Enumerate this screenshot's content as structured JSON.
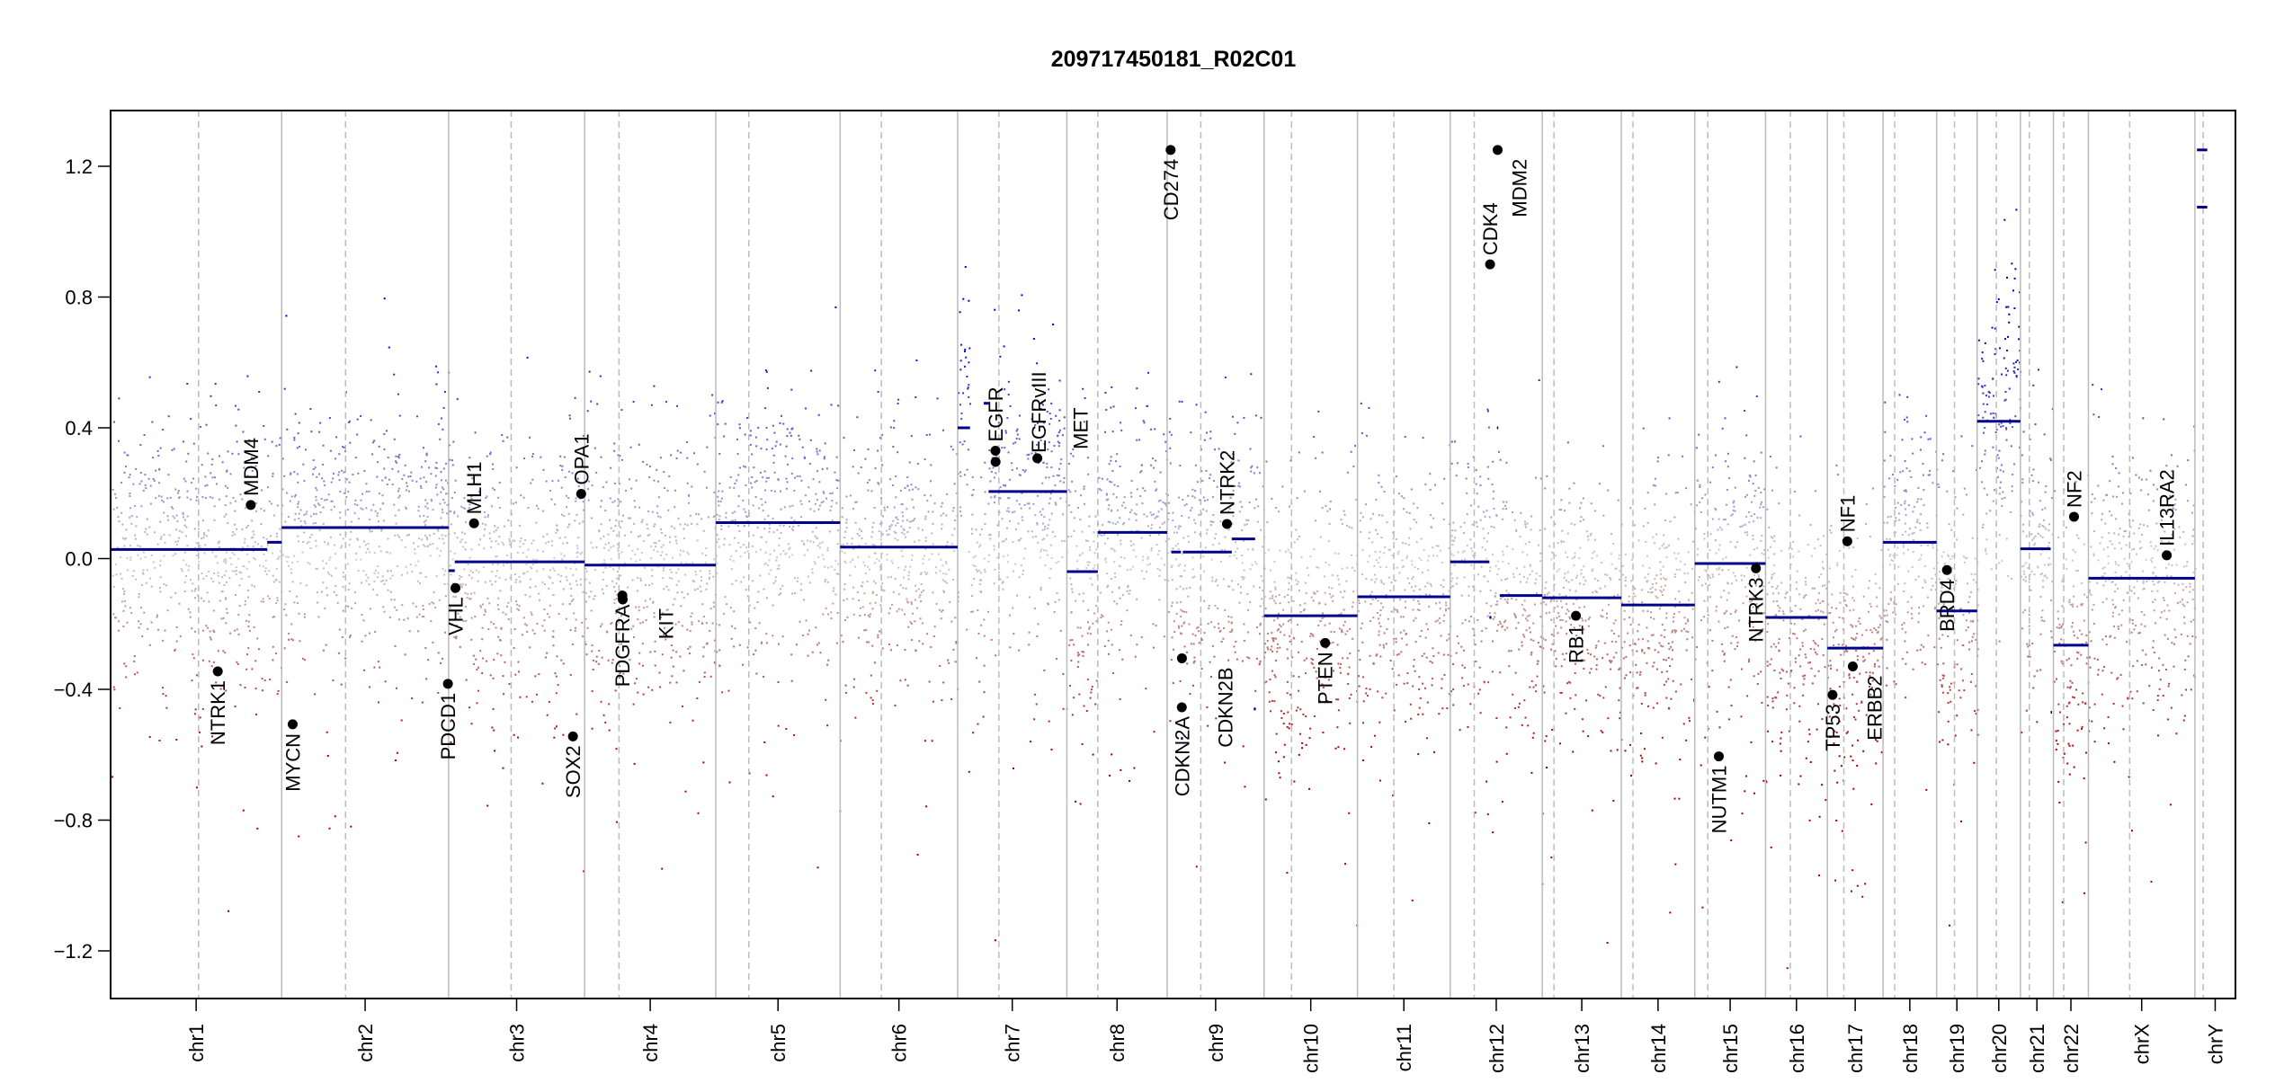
{
  "chart_data": {
    "type": "scatter",
    "title": "209717450181_R02C01",
    "xlabel": "",
    "ylabel": "",
    "ylim": [
      -1.35,
      1.35
    ],
    "yticks": [
      "-1.2",
      "-0.8",
      "-0.4",
      "0.0",
      "0.4",
      "0.8",
      "1.2"
    ],
    "x_units": "Mb",
    "colors": {
      "gain": "#0000c8",
      "loss": "#a80000",
      "neutral": "#cccccc",
      "segment": "#00008b",
      "gene_dot": "#000000",
      "chrom_line": "#bbbbbb"
    },
    "chromosomes": [
      {
        "name": "chr1",
        "length": 249,
        "centromere": 128
      },
      {
        "name": "chr2",
        "length": 243,
        "centromere": 93
      },
      {
        "name": "chr3",
        "length": 198,
        "centromere": 91
      },
      {
        "name": "chr4",
        "length": 191,
        "centromere": 50
      },
      {
        "name": "chr5",
        "length": 181,
        "centromere": 48
      },
      {
        "name": "chr6",
        "length": 171,
        "centromere": 60
      },
      {
        "name": "chr7",
        "length": 159,
        "centromere": 60
      },
      {
        "name": "chr8",
        "length": 146,
        "centromere": 45
      },
      {
        "name": "chr9",
        "length": 141,
        "centromere": 49
      },
      {
        "name": "chr10",
        "length": 136,
        "centromere": 40
      },
      {
        "name": "chr11",
        "length": 135,
        "centromere": 53
      },
      {
        "name": "chr12",
        "length": 134,
        "centromere": 35
      },
      {
        "name": "chr13",
        "length": 115,
        "centromere": 17
      },
      {
        "name": "chr14",
        "length": 107,
        "centromere": 17
      },
      {
        "name": "chr15",
        "length": 103,
        "centromere": 19
      },
      {
        "name": "chr16",
        "length": 90,
        "centromere": 36
      },
      {
        "name": "chr17",
        "length": 81,
        "centromere": 24
      },
      {
        "name": "chr18",
        "length": 78,
        "centromere": 17
      },
      {
        "name": "chr19",
        "length": 59,
        "centromere": 26
      },
      {
        "name": "chr20",
        "length": 63,
        "centromere": 28
      },
      {
        "name": "chr21",
        "length": 48,
        "centromere": 13
      },
      {
        "name": "chr22",
        "length": 51,
        "centromere": 15
      },
      {
        "name": "chrX",
        "length": 155,
        "centromere": 60
      },
      {
        "name": "chrY",
        "length": 59,
        "centromere": 12
      }
    ],
    "segments": [
      [
        "chr1",
        0,
        228,
        0.028
      ],
      [
        "chr1",
        228,
        249,
        0.05
      ],
      [
        "chr2",
        0,
        243,
        0.095
      ],
      [
        "chr3",
        0,
        9,
        -0.037
      ],
      [
        "chr3",
        9,
        198,
        -0.01
      ],
      [
        "chr4",
        0,
        191,
        -0.02
      ],
      [
        "chr5",
        0,
        181,
        0.11
      ],
      [
        "chr6",
        0,
        171,
        0.035
      ],
      [
        "chr7",
        0,
        18,
        0.4
      ],
      [
        "chr7",
        38,
        45,
        0.475
      ],
      [
        "chr7",
        45,
        159,
        0.205
      ],
      [
        "chr8",
        0,
        45,
        -0.04
      ],
      [
        "chr8",
        45,
        146,
        0.08
      ],
      [
        "chr9",
        6,
        20,
        0.02
      ],
      [
        "chr9",
        20,
        23,
        -0.55
      ],
      [
        "chr9",
        23,
        94,
        0.02
      ],
      [
        "chr9",
        94,
        128,
        0.06
      ],
      [
        "chr9",
        126,
        129,
        -0.46
      ],
      [
        "chr10",
        0,
        136,
        -0.175
      ],
      [
        "chr11",
        0,
        135,
        -0.117
      ],
      [
        "chr12",
        0,
        57,
        -0.01
      ],
      [
        "chr12",
        57,
        60,
        -0.18
      ],
      [
        "chr12",
        68,
        70,
        0.4
      ],
      [
        "chr12",
        72,
        134,
        -0.113
      ],
      [
        "chr13",
        0,
        115,
        -0.12
      ],
      [
        "chr14",
        0,
        107,
        -0.142
      ],
      [
        "chr15",
        0,
        103,
        -0.015
      ],
      [
        "chr16",
        0,
        90,
        -0.18
      ],
      [
        "chr17",
        0,
        81,
        -0.274
      ],
      [
        "chr18",
        0,
        78,
        0.05
      ],
      [
        "chr19",
        0,
        59,
        -0.16
      ],
      [
        "chr20",
        0,
        63,
        0.42
      ],
      [
        "chr21",
        0,
        44,
        0.03
      ],
      [
        "chr21",
        44,
        46,
        -0.47
      ],
      [
        "chr22",
        0,
        51,
        -0.265
      ],
      [
        "chrX",
        0,
        155,
        -0.06
      ],
      [
        "chrY",
        3,
        18,
        1.075
      ],
      [
        "chrY",
        3,
        18,
        1.25
      ]
    ],
    "genes": [
      {
        "name": "NTRK1",
        "chrom": "chr1",
        "pos": 156,
        "value": -0.345
      },
      {
        "name": "MDM4",
        "chrom": "chr1",
        "pos": 204,
        "value": 0.164
      },
      {
        "name": "MYCN",
        "chrom": "chr2",
        "pos": 16,
        "value": -0.507
      },
      {
        "name": "PDCD1",
        "chrom": "chr2",
        "pos": 242,
        "value": -0.383
      },
      {
        "name": "VHL",
        "chrom": "chr3",
        "pos": 10,
        "value": -0.09
      },
      {
        "name": "MLH1",
        "chrom": "chr3",
        "pos": 37,
        "value": 0.108
      },
      {
        "name": "SOX2",
        "chrom": "chr3",
        "pos": 181,
        "value": -0.544
      },
      {
        "name": "OPA1",
        "chrom": "chr3",
        "pos": 193,
        "value": 0.198
      },
      {
        "name": "PDGFRA",
        "chrom": "chr4",
        "pos": 55,
        "value": -0.113
      },
      {
        "name": "KIT",
        "chrom": "chr4",
        "pos": 55.5,
        "value": -0.125
      },
      {
        "name": "EGFR",
        "chrom": "chr7",
        "pos": 55,
        "value": 0.33
      },
      {
        "name": "EGFRvIII",
        "chrom": "chr7",
        "pos": 55.2,
        "value": 0.296
      },
      {
        "name": "MET",
        "chrom": "chr7",
        "pos": 116,
        "value": 0.307
      },
      {
        "name": "CD274",
        "chrom": "chr9",
        "pos": 5,
        "value": 1.25
      },
      {
        "name": "CDKN2A",
        "chrom": "chr9",
        "pos": 21.3,
        "value": -0.455
      },
      {
        "name": "CDKN2B",
        "chrom": "chr9",
        "pos": 21.5,
        "value": -0.305
      },
      {
        "name": "NTRK2",
        "chrom": "chr9",
        "pos": 87,
        "value": 0.106
      },
      {
        "name": "PTEN",
        "chrom": "chr10",
        "pos": 89,
        "value": -0.258
      },
      {
        "name": "CDK4",
        "chrom": "chr12",
        "pos": 58,
        "value": 0.9
      },
      {
        "name": "MDM2",
        "chrom": "chr12",
        "pos": 69,
        "value": 1.25
      },
      {
        "name": "RB1",
        "chrom": "chr13",
        "pos": 49,
        "value": -0.175
      },
      {
        "name": "NUTM1",
        "chrom": "chr15",
        "pos": 35,
        "value": -0.605
      },
      {
        "name": "NTRK3",
        "chrom": "chr15",
        "pos": 89,
        "value": -0.03
      },
      {
        "name": "TP53",
        "chrom": "chr17",
        "pos": 7.5,
        "value": -0.417
      },
      {
        "name": "NF1",
        "chrom": "chr17",
        "pos": 29,
        "value": 0.053
      },
      {
        "name": "ERBB2",
        "chrom": "chr17",
        "pos": 37,
        "value": -0.33
      },
      {
        "name": "BRD4",
        "chrom": "chr19",
        "pos": 15,
        "value": -0.035
      },
      {
        "name": "NF2",
        "chrom": "chr22",
        "pos": 30,
        "value": 0.128
      },
      {
        "name": "IL13RA2",
        "chrom": "chrX",
        "pos": 114,
        "value": 0.01
      }
    ]
  }
}
